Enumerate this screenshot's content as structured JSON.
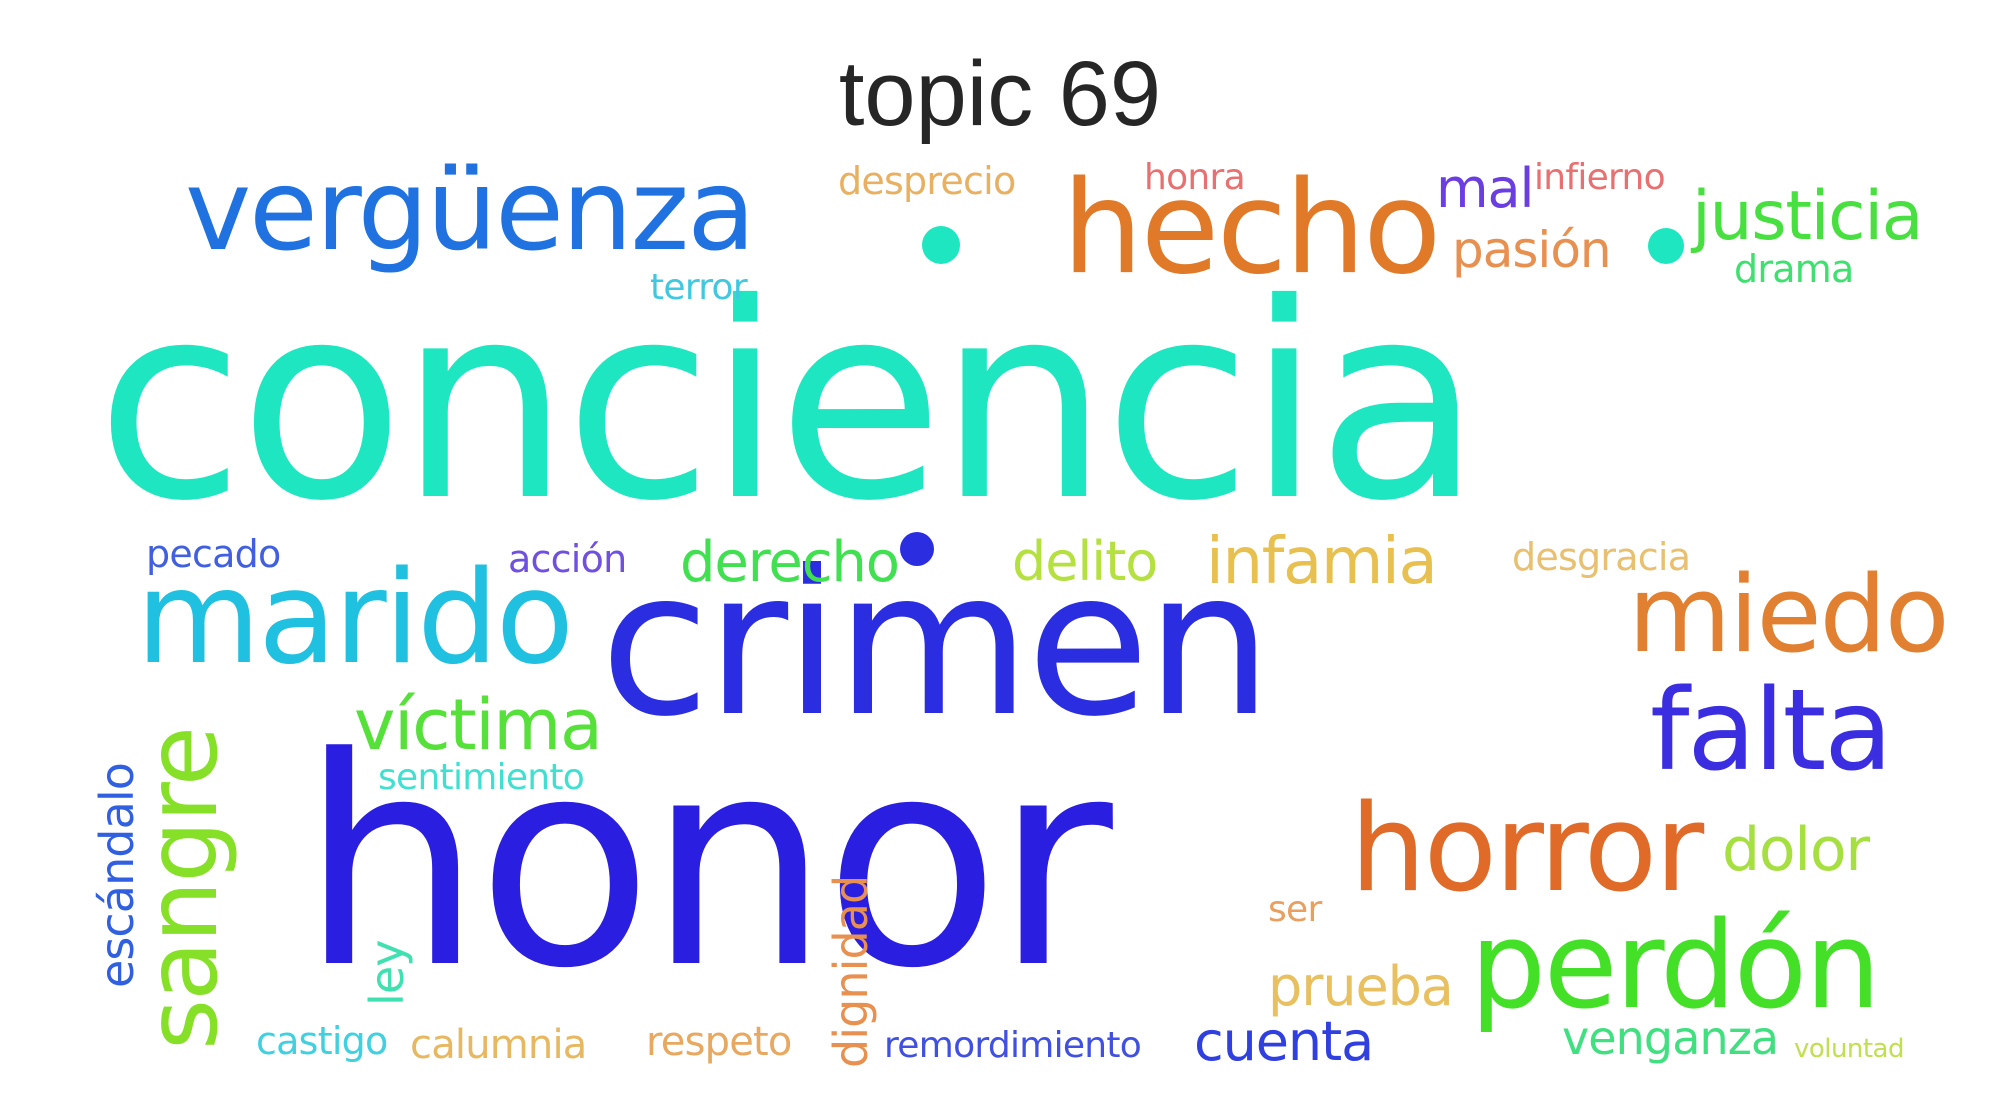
{
  "title": "topic 69",
  "words": [
    {
      "text": "conciencia",
      "color": "#1ee6c0"
    },
    {
      "text": "crimen",
      "color": "#2a2ee0"
    },
    {
      "text": "honor",
      "color": "#2a1ee0"
    },
    {
      "text": "vergüenza",
      "color": "#1f72e0"
    },
    {
      "text": "hecho",
      "color": "#e07a28"
    },
    {
      "text": "marido",
      "color": "#20c0e0"
    },
    {
      "text": "falta",
      "color": "#3a2ee0"
    },
    {
      "text": "miedo",
      "color": "#e08030"
    },
    {
      "text": "horror",
      "color": "#e06a28"
    },
    {
      "text": "perdón",
      "color": "#44e028"
    },
    {
      "text": "sangre",
      "color": "#86e028"
    },
    {
      "text": "víctima",
      "color": "#56e03a"
    },
    {
      "text": "justicia",
      "color": "#48e040"
    },
    {
      "text": "infamia",
      "color": "#e8c050"
    },
    {
      "text": "derecho",
      "color": "#40e050"
    },
    {
      "text": "delito",
      "color": "#b4e040"
    },
    {
      "text": "dolor",
      "color": "#a6e040"
    },
    {
      "text": "pasión",
      "color": "#e89050"
    },
    {
      "text": "mal",
      "color": "#6a3ee0"
    },
    {
      "text": "infierno",
      "color": "#e87070"
    },
    {
      "text": "honra",
      "color": "#e87070"
    },
    {
      "text": "desprecio",
      "color": "#e8b060"
    },
    {
      "text": "terror",
      "color": "#40c8e0"
    },
    {
      "text": "drama",
      "color": "#40e070"
    },
    {
      "text": "pecado",
      "color": "#4060e0"
    },
    {
      "text": "acción",
      "color": "#7050e0"
    },
    {
      "text": "desgracia",
      "color": "#e8c070"
    },
    {
      "text": "sentimiento",
      "color": "#40e0d0"
    },
    {
      "text": "escándalo",
      "color": "#3060e0"
    },
    {
      "text": "ley",
      "color": "#40e0b0"
    },
    {
      "text": "dignidad",
      "color": "#e89050"
    },
    {
      "text": "ser",
      "color": "#e8a060"
    },
    {
      "text": "prueba",
      "color": "#e8c060"
    },
    {
      "text": "castigo",
      "color": "#40d0e0"
    },
    {
      "text": "calumnia",
      "color": "#e8b860"
    },
    {
      "text": "respeto",
      "color": "#e8a860"
    },
    {
      "text": "remordimiento",
      "color": "#4050e0"
    },
    {
      "text": "cuenta",
      "color": "#3040e0"
    },
    {
      "text": "venganza",
      "color": "#40e080"
    },
    {
      "text": "voluntad",
      "color": "#c0e050"
    },
    {
      "text": "",
      "color": "#1ee6c0"
    },
    {
      "text": "",
      "color": "#1ee6c0"
    },
    {
      "text": "",
      "color": "#2a2ee0"
    }
  ]
}
